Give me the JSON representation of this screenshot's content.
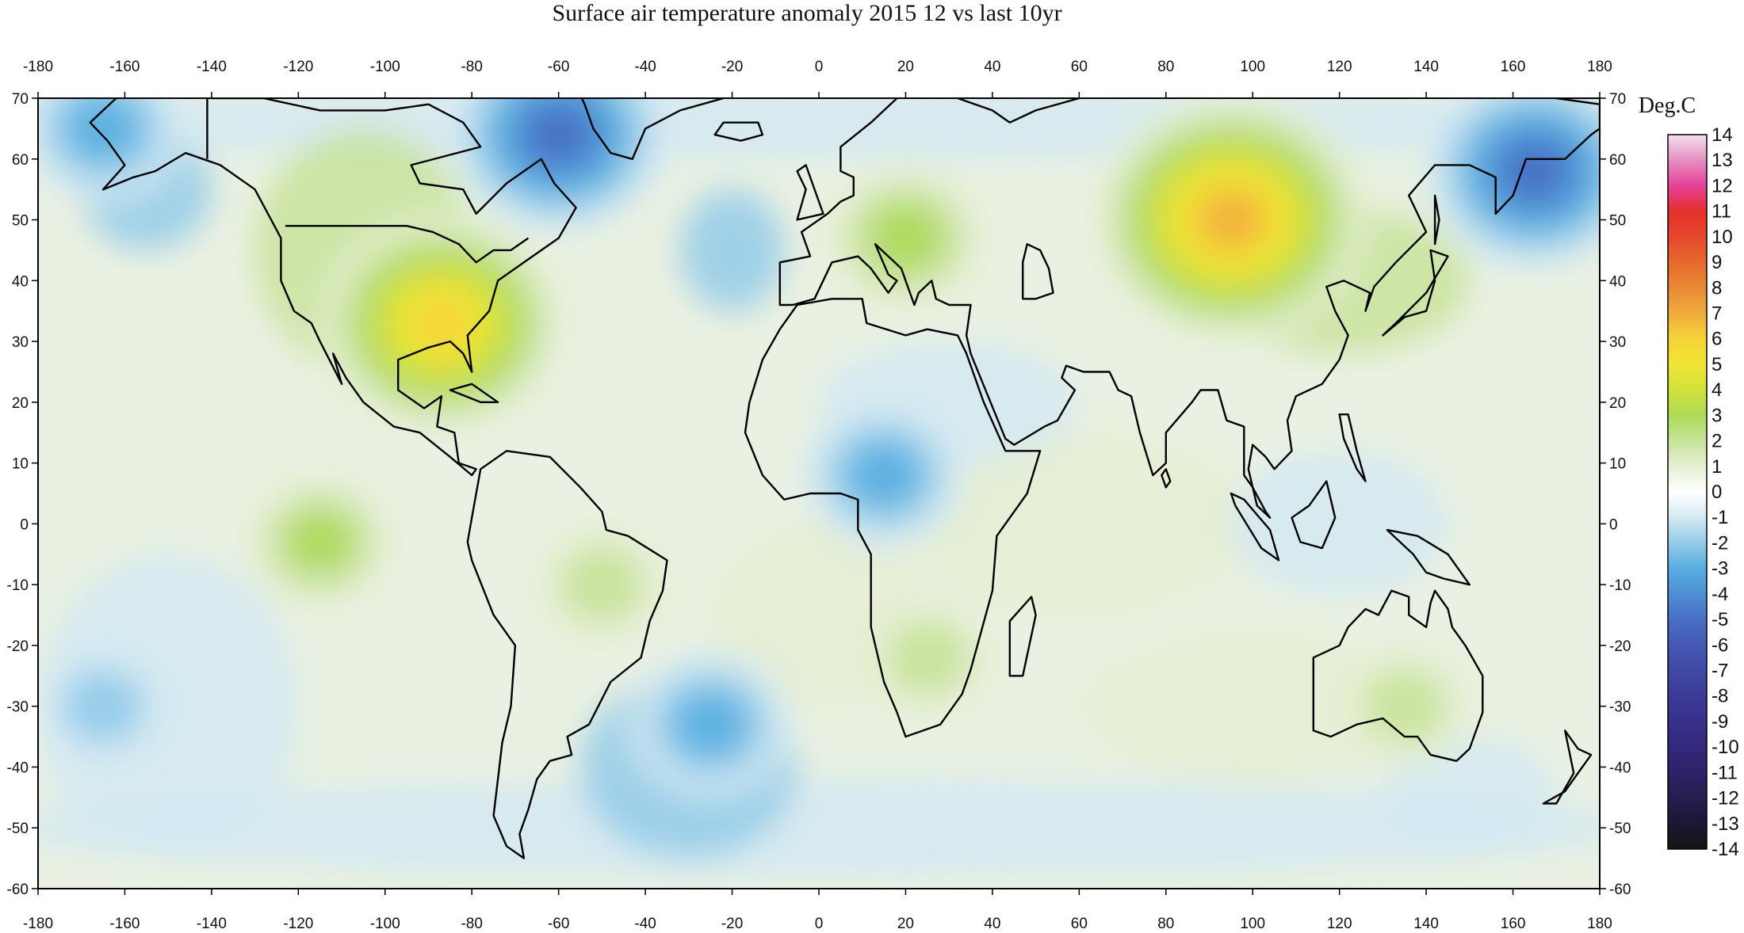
{
  "title": "Surface air temperature anomaly 2015 12 vs last 10yr",
  "colorbar": {
    "unit_label": "Deg.C",
    "levels": [
      "14",
      "13",
      "12",
      "11",
      "10",
      "9",
      "8",
      "7",
      "6",
      "5",
      "4",
      "3",
      "2",
      "1",
      "0",
      "-1",
      "-2",
      "-3",
      "-4",
      "-5",
      "-6",
      "-7",
      "-8",
      "-9",
      "-10",
      "-11",
      "-12",
      "-13",
      "-14"
    ],
    "colors": [
      "#f4e2ec",
      "#e58fc1",
      "#e5419a",
      "#e52f2b",
      "#e5472c",
      "#e5692d",
      "#e88a35",
      "#f0ab3c",
      "#f5d33a",
      "#f0e634",
      "#d3e23c",
      "#add957",
      "#c8e39a",
      "#e6efd4",
      "#ffffff",
      "#d4e9f2",
      "#94cbe9",
      "#59aee0",
      "#4e8fd3",
      "#4a6fc4",
      "#4458b4",
      "#3f4aa5",
      "#3b3b97",
      "#38308b",
      "#33287c",
      "#2e2368",
      "#251d4e",
      "#1d1733",
      "#141414"
    ]
  },
  "axes": {
    "x_ticks": [
      "-180",
      "-160",
      "-140",
      "-120",
      "-100",
      "-80",
      "-60",
      "-40",
      "-20",
      "0",
      "20",
      "40",
      "60",
      "80",
      "100",
      "120",
      "140",
      "160",
      "180"
    ],
    "y_ticks": [
      "70",
      "60",
      "50",
      "40",
      "30",
      "20",
      "10",
      "0",
      "-10",
      "-20",
      "-30",
      "-40",
      "-50",
      "-60"
    ],
    "lon_range": [
      -180,
      180
    ],
    "lat_range": [
      -60,
      70
    ]
  },
  "anomaly_regions": [
    {
      "name": "eastern North America warm",
      "lon": -87,
      "lat": 33,
      "value": 6
    },
    {
      "name": "central Asia / Siberia warm",
      "lon": 95,
      "lat": 50,
      "value": 7
    },
    {
      "name": "Europe warm",
      "lon": 20,
      "lat": 47,
      "value": 3
    },
    {
      "name": "eastern Pacific warm band",
      "lon": -115,
      "lat": -3,
      "value": 2.5
    },
    {
      "name": "Amazon warm",
      "lon": -50,
      "lat": -10,
      "value": 2
    },
    {
      "name": "southern Africa warm",
      "lon": 25,
      "lat": -22,
      "value": 2
    },
    {
      "name": "Australia warm",
      "lon": 135,
      "lat": -30,
      "value": 2
    },
    {
      "name": "Greenland / Labrador cold",
      "lon": -60,
      "lat": 64,
      "value": -5
    },
    {
      "name": "eastern Siberia cold",
      "lon": 165,
      "lat": 58,
      "value": -5
    },
    {
      "name": "Sahara / Middle East cold",
      "lon": 15,
      "lat": 8,
      "value": -3
    },
    {
      "name": "Alaska cold",
      "lon": -165,
      "lat": 65,
      "value": -3
    },
    {
      "name": "South Atlantic cold",
      "lon": -25,
      "lat": -33,
      "value": -3
    },
    {
      "name": "South Pacific cold",
      "lon": -165,
      "lat": -30,
      "value": -2
    }
  ]
}
